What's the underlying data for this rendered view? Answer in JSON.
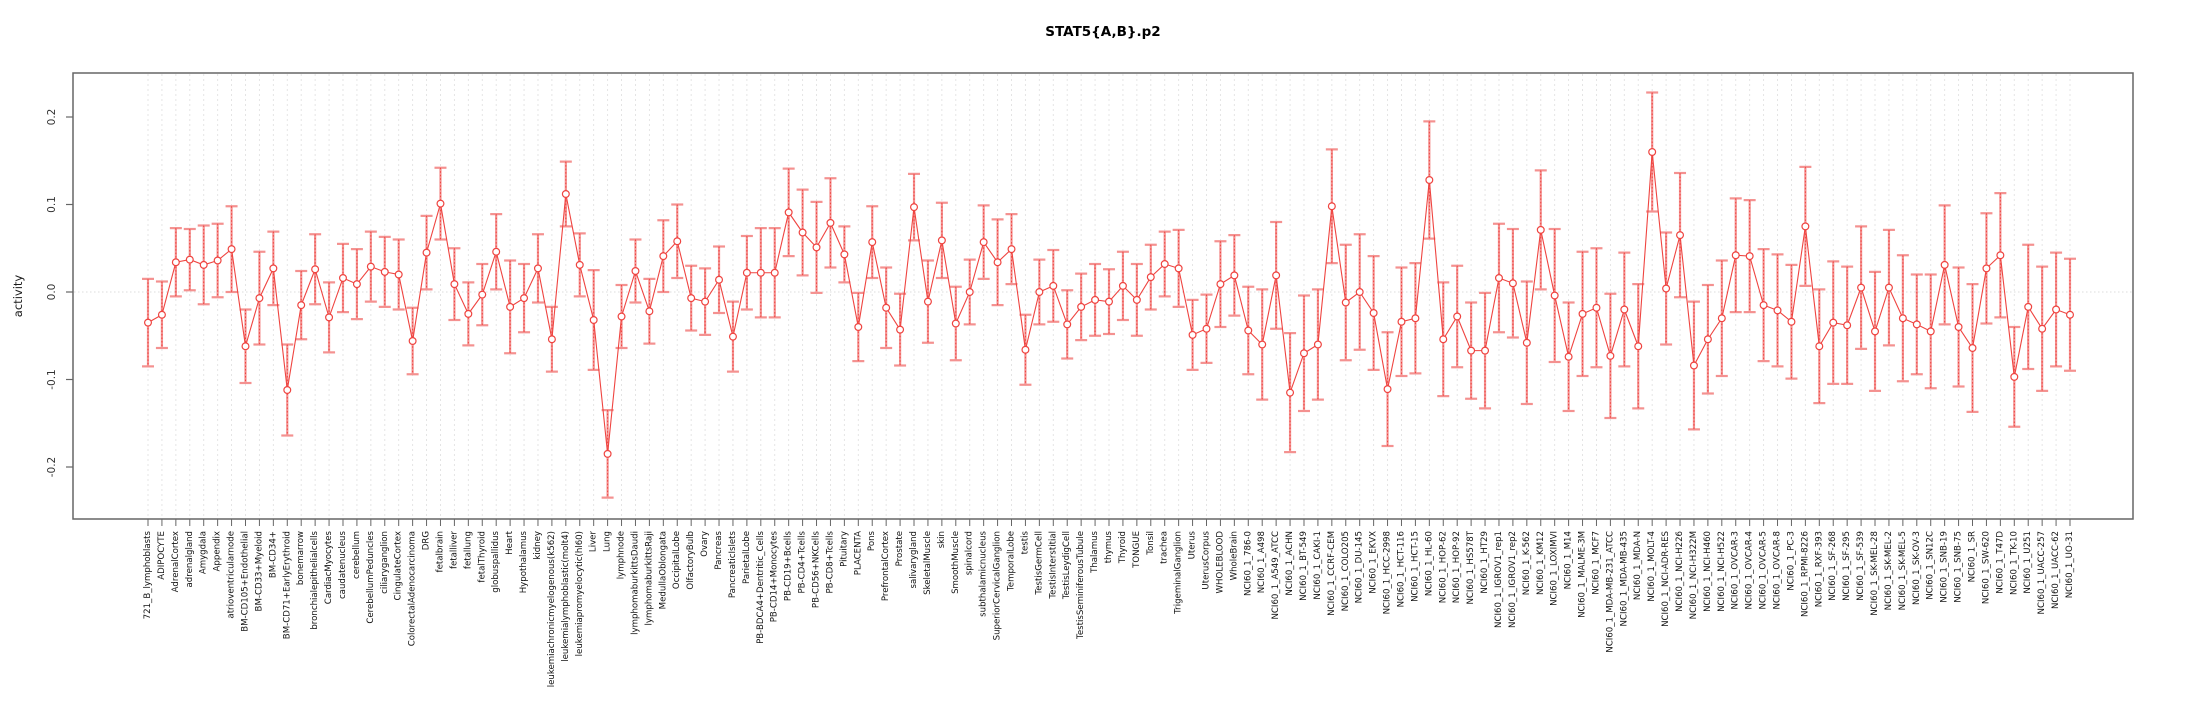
{
  "chart_data": {
    "type": "line",
    "title": "STAT5{A,B}.p2",
    "ylabel": "activity",
    "xlabel": "",
    "ylim": [
      -0.26,
      0.25
    ],
    "yticks": [
      0.2,
      0.1,
      0.0,
      -0.1,
      -0.2
    ],
    "ytick_labels": [
      "0.2",
      "0.1",
      "0.0",
      "-0.1",
      "-0.2"
    ],
    "grid": "dotted vertical line per category; dotted horizontal line at 0",
    "legend_position": "none",
    "marker": "open-circle",
    "error_bars": true,
    "colors": {
      "series_red": "#ef4440",
      "error_bar_salmon": "#f49190",
      "gridline": "#e2e2e2",
      "zero_line": "#dcdcdc",
      "axis_box": "#666666",
      "tick_text": "#333333",
      "label_text": "#111111",
      "background": "#ffffff"
    },
    "categories": [
      "721_B_lymphoblasts",
      "ADIPOCYTE",
      "AdrenalCortex",
      "adrenalgland",
      "Amygdala",
      "Appendix",
      "atrioventricularnode",
      "BM-CD105+Endothelial",
      "BM-CD33+Myeloid",
      "BM-CD34+",
      "BM-CD71+EarlyErythroid",
      "bonemarrow",
      "bronchialepithelialcells",
      "CardiacMyocytes",
      "caudatenucleus",
      "cerebellum",
      "CerebellumPeduncles",
      "ciliaryganglion",
      "CingulateCortex",
      "ColorectalAdenocarcinoma",
      "DRG",
      "fetalbrain",
      "fetalliver",
      "fetallung",
      "fetalThyroid",
      "globuspallidus",
      "Heart",
      "Hypothalamus",
      "kidney",
      "leukemiachronicmyelogenous(k562)",
      "leukemialymphoblastic(molt4)",
      "leukemiapromyelocytic(hl60)",
      "Liver",
      "Lung",
      "lymphnode",
      "lymphomaburkittsDaudi",
      "lymphomaburkittsRaji",
      "MedullaOblongata",
      "OccipitalLobe",
      "OlfactoryBulb",
      "Ovary",
      "Pancreas",
      "PancreaticIslets",
      "ParietalLobe",
      "PB-BDCA4+Dentritic_Cells",
      "PB-CD14+Monocytes",
      "PB-CD19+Bcells",
      "PB-CD4+Tcells",
      "PB-CD56+NKCells",
      "PB-CD8+Tcells",
      "Pituitary",
      "PLACENTA",
      "Pons",
      "PrefrontalCortex",
      "Prostate",
      "salivarygland",
      "SkeletalMuscle",
      "skin",
      "SmoothMuscle",
      "spinalcord",
      "subthalamicnucleus",
      "SuperiorCervicalGanglion",
      "TemporalLobe",
      "testis",
      "TestisGermCell",
      "TestisInterstitial",
      "TestisLeydigCell",
      "TestisSeminiferousTubule",
      "Thalamus",
      "thymus",
      "Thyroid",
      "TONGUE",
      "Tonsil",
      "trachea",
      "TrigeminalGanglion",
      "Uterus",
      "UterusCorpus",
      "WHOLEBLOOD",
      "WholeBrain",
      "NCI60_1_786-0",
      "NCI60_1_A498",
      "NCI60_1_A549_ATCC",
      "NCI60_1_ACHN",
      "NCI60_1_BT-549",
      "NCI60_1_CAKI-1",
      "NCI60_1_CCRF-CEM",
      "NCI60_1_COLO205",
      "NCI60_1_DU-145",
      "NCI60_1_EKVX",
      "NCI60_1_HCC-2998",
      "NCI60_1_HCT-116",
      "NCI60_1_HCT-15",
      "NCI60_1_HL-60",
      "NCI60_1_HOP-62",
      "NCI60_1_HOP-92",
      "NCI60_1_HS578T",
      "NCI60_1_HT29",
      "NCI60_1_IGROV1_rep1",
      "NCI60_1_IGROV1_rep2",
      "NCI60_1_K-562",
      "NCI60_1_KM12",
      "NCI60_1_LOXIMVI",
      "NCI60_1_M14",
      "NCI60_1_MALME-3M",
      "NCI60_1_MCF7",
      "NCI60_1_MDA-MB-231_ATCC",
      "NCI60_1_MDA-MB-435",
      "NCI60_1_MDA-N",
      "NCI60_1_MOLT-4",
      "NCI60_1_NCI-ADR-RES",
      "NCI60_1_NCI-H226",
      "NCI60_1_NCI-H322M",
      "NCI60_1_NCI-H460",
      "NCI60_1_NCI-H522",
      "NCI60_1_OVCAR-3",
      "NCI60_1_OVCAR-4",
      "NCI60_1_OVCAR-5",
      "NCI60_1_OVCAR-8",
      "NCI60_1_PC-3",
      "NCI60_1_RPMI-8226",
      "NCI60_1_RXF-393",
      "NCI60_1_SF-268",
      "NCI60_1_SF-295",
      "NCI60_1_SF-539",
      "NCI60_1_SK-MEL-28",
      "NCI60_1_SK-MEL-2",
      "NCI60_1_SK-MEL-5",
      "NCI60_1_SK-OV-3",
      "NCI60_1_SN12C",
      "NCI60_1_SNB-19",
      "NCI60_1_SNB-75",
      "NCI60_1_SR",
      "NCI60_1_SW-620",
      "NCI60_1_T47D",
      "NCI60_1_TK-10",
      "NCI60_1_U251",
      "NCI60_1_UACC-257",
      "NCI60_1_UACC-62",
      "NCI60_1_UO-31"
    ],
    "series": [
      {
        "name": "activity",
        "values": [
          -0.035,
          -0.026,
          0.034,
          0.037,
          0.031,
          0.036,
          0.049,
          -0.062,
          -0.007,
          0.027,
          -0.112,
          -0.015,
          0.026,
          -0.029,
          0.016,
          0.009,
          0.029,
          0.023,
          0.02,
          -0.056,
          0.045,
          0.101,
          0.009,
          -0.025,
          -0.003,
          0.046,
          -0.017,
          -0.007,
          0.027,
          -0.054,
          0.112,
          0.031,
          -0.032,
          -0.185,
          -0.028,
          0.024,
          -0.022,
          0.041,
          0.058,
          -0.007,
          -0.011,
          0.014,
          -0.051,
          0.022,
          0.022,
          0.022,
          0.091,
          0.068,
          0.051,
          0.079,
          0.043,
          -0.04,
          0.057,
          -0.018,
          -0.043,
          0.097,
          -0.011,
          0.059,
          -0.036,
          0.0,
          0.057,
          0.034,
          0.049,
          -0.066,
          0.0,
          0.007,
          -0.037,
          -0.017,
          -0.009,
          -0.011,
          0.007,
          -0.009,
          0.017,
          0.032,
          0.027,
          -0.049,
          -0.042,
          0.009,
          0.019,
          -0.044,
          -0.06,
          0.019,
          -0.115,
          -0.07,
          -0.06,
          0.098,
          -0.012,
          0.0,
          -0.024,
          -0.111,
          -0.034,
          -0.03,
          0.128,
          -0.054,
          -0.028,
          -0.067,
          -0.067,
          0.016,
          0.01,
          -0.058,
          0.071,
          -0.004,
          -0.074,
          -0.025,
          -0.018,
          -0.073,
          -0.02,
          -0.062,
          0.16,
          0.004,
          0.065,
          -0.084,
          -0.054,
          -0.03,
          0.042,
          0.041,
          -0.015,
          -0.021,
          -0.034,
          0.075,
          -0.062,
          -0.035,
          -0.038,
          0.005,
          -0.045,
          0.005,
          -0.03,
          -0.037,
          -0.045,
          0.031,
          -0.04,
          -0.064,
          0.027,
          0.042,
          -0.097,
          -0.017,
          -0.042,
          -0.02,
          -0.026
        ],
        "errors": [
          0.05,
          0.038,
          0.039,
          0.035,
          0.045,
          0.042,
          0.049,
          0.042,
          0.053,
          0.042,
          0.052,
          0.039,
          0.04,
          0.04,
          0.039,
          0.04,
          0.04,
          0.04,
          0.04,
          0.038,
          0.042,
          0.041,
          0.041,
          0.036,
          0.035,
          0.043,
          0.053,
          0.039,
          0.039,
          0.037,
          0.037,
          0.036,
          0.057,
          0.05,
          0.036,
          0.036,
          0.037,
          0.041,
          0.042,
          0.037,
          0.038,
          0.038,
          0.04,
          0.042,
          0.051,
          0.051,
          0.05,
          0.049,
          0.052,
          0.051,
          0.032,
          0.039,
          0.041,
          0.046,
          0.041,
          0.038,
          0.047,
          0.043,
          0.042,
          0.037,
          0.042,
          0.049,
          0.04,
          0.04,
          0.037,
          0.041,
          0.039,
          0.038,
          0.041,
          0.037,
          0.039,
          0.041,
          0.037,
          0.037,
          0.044,
          0.04,
          0.039,
          0.049,
          0.046,
          0.05,
          0.063,
          0.061,
          0.068,
          0.066,
          0.063,
          0.065,
          0.066,
          0.066,
          0.065,
          0.065,
          0.062,
          0.063,
          0.067,
          0.065,
          0.058,
          0.055,
          0.066,
          0.062,
          0.062,
          0.07,
          0.068,
          0.076,
          0.062,
          0.071,
          0.068,
          0.071,
          0.065,
          0.071,
          0.068,
          0.064,
          0.071,
          0.073,
          0.062,
          0.066,
          0.065,
          0.064,
          0.064,
          0.064,
          0.065,
          0.068,
          0.065,
          0.07,
          0.067,
          0.07,
          0.068,
          0.066,
          0.072,
          0.057,
          0.065,
          0.068,
          0.068,
          0.073,
          0.063,
          0.071,
          0.057,
          0.071,
          0.071,
          0.065,
          0.064
        ]
      }
    ]
  }
}
